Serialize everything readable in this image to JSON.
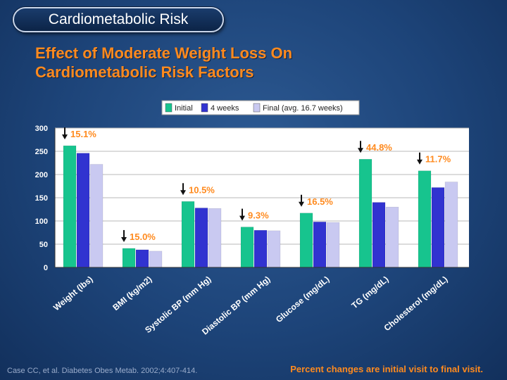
{
  "header": {
    "title": "Cardiometabolic Risk"
  },
  "slide": {
    "title_line1": "Effect of Moderate Weight Loss On",
    "title_line2": "Cardiometabolic Risk Factors"
  },
  "footer": {
    "citation": "Case CC, et al. Diabetes Obes Metab. 2002;4:407-414.",
    "note": "Percent changes are initial visit to final visit."
  },
  "colors": {
    "initial": "#17c48e",
    "week4": "#3133d0",
    "final": "#c9c9f1",
    "annotation": "#ff8a1e"
  },
  "chart_data": {
    "type": "bar",
    "categories": [
      "Weight (lbs)",
      "BMI (kg/m2)",
      "Systolic BP (mm Hg)",
      "Diastolic BP (mm Hg)",
      "Glucose (mg/dL)",
      "TG (mg/dL)",
      "Cholesterol (mg/dL)"
    ],
    "series": [
      {
        "name": "Initial",
        "values": [
          262,
          41,
          142,
          87,
          117,
          233,
          208
        ]
      },
      {
        "name": "4 weeks",
        "values": [
          246,
          38,
          128,
          80,
          98,
          140,
          172
        ]
      },
      {
        "name": "Final (avg. 16.7 weeks)",
        "values": [
          222,
          35,
          127,
          79,
          97,
          130,
          184
        ]
      }
    ],
    "annotations": [
      "15.1%",
      "15.0%",
      "10.5%",
      "9.3%",
      "16.5%",
      "44.8%",
      "11.7%"
    ],
    "ylim": [
      0,
      300
    ],
    "yticks": [
      0,
      50,
      100,
      150,
      200,
      250,
      300
    ],
    "grid": true,
    "legend": "top-center"
  }
}
